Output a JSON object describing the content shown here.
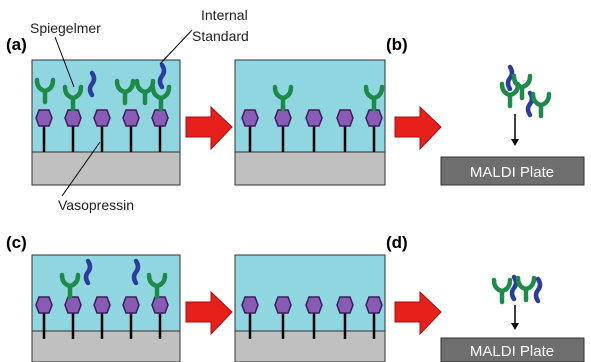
{
  "panel_labels": [
    "(a)",
    "(b)",
    "(c)",
    "(d)"
  ],
  "callouts": {
    "spiegelmer": "Spiegelmer",
    "internal_standard": [
      "Internal",
      "Standard"
    ],
    "vasopressin": "Vasopressin"
  },
  "plates": [
    "MALDI Plate",
    "MALDI Plate"
  ]
}
